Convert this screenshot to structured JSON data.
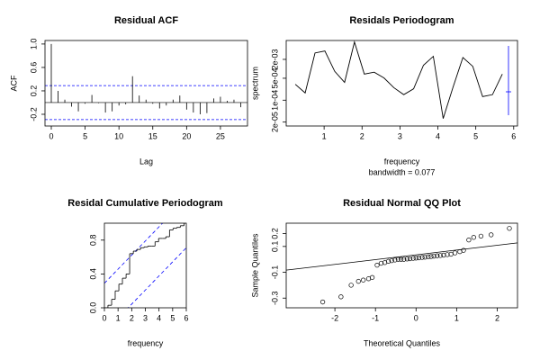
{
  "chart_data": [
    {
      "type": "bar",
      "title": "Residual ACF",
      "xlabel": "Lag",
      "ylabel": "ACF",
      "x": [
        0,
        1,
        2,
        3,
        4,
        5,
        6,
        7,
        8,
        9,
        10,
        11,
        12,
        13,
        14,
        15,
        16,
        17,
        18,
        19,
        20,
        21,
        22,
        23,
        24,
        25,
        26,
        27,
        28
      ],
      "values": [
        1.0,
        0.2,
        0.05,
        -0.07,
        -0.15,
        -0.02,
        0.13,
        -0.01,
        -0.17,
        -0.15,
        -0.05,
        -0.03,
        0.45,
        0.12,
        0.05,
        -0.02,
        -0.1,
        -0.05,
        0.05,
        0.12,
        -0.12,
        -0.17,
        -0.2,
        -0.18,
        0.07,
        0.1,
        0.03,
        0.05,
        -0.08
      ],
      "color": "#000000",
      "ci": 0.29,
      "ci_color": "#0000ff",
      "xlim": [
        -0.93,
        29
      ],
      "ylim": [
        -0.4,
        1.06
      ],
      "xticks": [
        0,
        5,
        10,
        15,
        20,
        25
      ],
      "yticks": [
        -0.2,
        0.2,
        0.6,
        {
          "value": 1,
          "label": "1.0"
        }
      ]
    },
    {
      "type": "line",
      "title": "Residals Periodogram",
      "xlabel": "frequency",
      "subtitle": "bandwidth = 0.077",
      "ylabel": "spectrum",
      "x": [
        0.24,
        0.5,
        0.76,
        1.02,
        1.28,
        1.54,
        1.8,
        2.06,
        2.32,
        2.58,
        2.84,
        3.1,
        3.36,
        3.62,
        3.88,
        4.14,
        4.4,
        4.66,
        4.92,
        5.18,
        5.44,
        5.7
      ],
      "values": [
        0.00032,
        0.00017,
        0.0032,
        0.0037,
        0.00083,
        0.00037,
        0.0072,
        0.00068,
        0.00078,
        0.00051,
        0.00025,
        0.00015,
        0.00023,
        0.0013,
        0.0025,
        2.6e-05,
        0.00026,
        0.0023,
        0.0012,
        0.00013,
        0.00015,
        0.00068
      ],
      "color": "#000000",
      "log_y": true,
      "ci_color": "#0000ff",
      "xlim": [
        0,
        6.1
      ],
      "ylim": [
        1.5e-05,
        0.008
      ],
      "xticks": [
        1,
        2,
        3,
        4,
        5,
        6
      ],
      "yticks": [
        {
          "value": 2e-05,
          "label": "2e-05"
        },
        {
          "value": 0.0001,
          "label": "1e-04"
        },
        {
          "value": 0.0005,
          "label": "5e-04"
        },
        {
          "value": 0.002,
          "label": "2e-03"
        }
      ]
    },
    {
      "type": "step",
      "title": "Residal Cumulative Periodogram",
      "xlabel": "frequency",
      "x": [
        0.26,
        0.53,
        0.79,
        1.06,
        1.32,
        1.59,
        1.85,
        2.12,
        2.38,
        2.65,
        2.91,
        3.18,
        3.44,
        3.71,
        3.97,
        4.24,
        4.5,
        4.77,
        5.03,
        5.3,
        5.56,
        5.83
      ],
      "values": [
        0.03,
        0.1,
        0.2,
        0.28,
        0.35,
        0.4,
        0.64,
        0.67,
        0.69,
        0.71,
        0.72,
        0.73,
        0.73,
        0.78,
        0.82,
        0.82,
        0.84,
        0.92,
        0.94,
        0.95,
        0.97,
        1.0
      ],
      "color": "#000000",
      "band": 0.29,
      "band_color": "#0000ff",
      "xlim": [
        0,
        6
      ],
      "ylim": [
        0,
        1
      ],
      "xticks": [
        0,
        1,
        2,
        3,
        4,
        5,
        6
      ],
      "yticks": [
        {
          "value": 0,
          "label": "0.0"
        },
        0.4,
        0.8
      ]
    },
    {
      "type": "scatter",
      "title": "Residual Normal QQ Plot",
      "xlabel": "Theoretical Quantiles",
      "ylabel": "Sample Quantiles",
      "x": [
        -2.3,
        -1.85,
        -1.6,
        -1.42,
        -1.3,
        -1.17,
        -1.08,
        -0.96,
        -0.86,
        -0.77,
        -0.68,
        -0.6,
        -0.52,
        -0.44,
        -0.37,
        -0.3,
        -0.22,
        -0.15,
        -0.07,
        0,
        0.07,
        0.15,
        0.22,
        0.3,
        0.37,
        0.44,
        0.52,
        0.6,
        0.68,
        0.77,
        0.86,
        0.96,
        1.08,
        1.17,
        1.3,
        1.42,
        1.6,
        1.85,
        2.3
      ],
      "values": [
        -0.33,
        -0.29,
        -0.2,
        -0.17,
        -0.16,
        -0.15,
        -0.14,
        -0.045,
        -0.03,
        -0.025,
        -0.015,
        -0.01,
        -0.005,
        0,
        0,
        0,
        0.003,
        0.005,
        0.008,
        0.01,
        0.012,
        0.015,
        0.017,
        0.02,
        0.022,
        0.025,
        0.028,
        0.03,
        0.033,
        0.037,
        0.04,
        0.05,
        0.06,
        0.07,
        0.15,
        0.17,
        0.18,
        0.19,
        0.24
      ],
      "color": "#000000",
      "line": {
        "slope": 0.037,
        "intercept": 0.035
      },
      "xlim": [
        -3.2,
        2.5
      ],
      "ylim": [
        -0.375,
        0.28
      ],
      "xticks": [
        -2,
        -1,
        0,
        1,
        2
      ],
      "yticks": [
        -0.3,
        -0.1,
        0.1,
        0.2
      ]
    }
  ]
}
